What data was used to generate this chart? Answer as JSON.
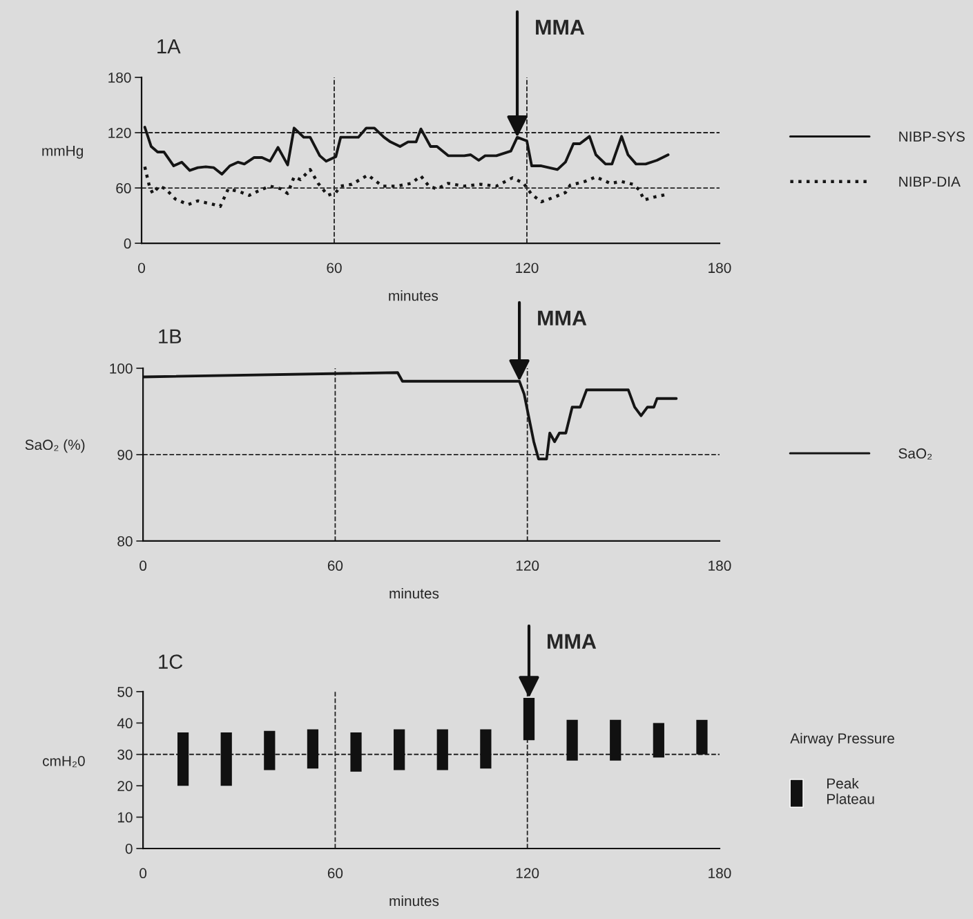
{
  "chart_data": [
    {
      "type": "line",
      "title": "1A",
      "xlabel": "minutes",
      "ylabel": "mmHg",
      "xlim": [
        0,
        180
      ],
      "xticks": [
        0,
        60,
        120,
        180
      ],
      "ylim": [
        0,
        180
      ],
      "yticks": [
        0,
        60,
        120,
        180
      ],
      "legend": "right",
      "series": [
        {
          "name": "NIBP-SYS",
          "color": "#151515",
          "line_style": "solid",
          "x": [
            1,
            3,
            5,
            7,
            10,
            12.5,
            15,
            17.5,
            20,
            22.5,
            25,
            27.5,
            30,
            32,
            35,
            37.5,
            40,
            42.5,
            45.5,
            47.5,
            50.5,
            52.5,
            55.5,
            57.5,
            60.5,
            62,
            67.5,
            70,
            72.5,
            75.5,
            77.5,
            80.5,
            83,
            85.5,
            87,
            90,
            92,
            95.5,
            100.5,
            102.5,
            105,
            107,
            110.5,
            115,
            117,
            120,
            121.5,
            124.5,
            129.5,
            132,
            134.5,
            136.5,
            139.5,
            141.5,
            144.5,
            146.5,
            149.5,
            151.5,
            154,
            157,
            160.5,
            164
          ],
          "values": [
            126,
            105,
            99,
            99,
            84,
            88,
            79,
            82,
            83,
            82,
            75,
            84,
            88,
            86,
            93,
            93,
            89,
            104,
            85,
            125,
            115,
            115,
            95,
            89,
            94,
            115,
            115,
            125,
            125,
            115,
            110,
            105,
            110,
            110,
            124,
            105,
            105,
            95,
            95,
            96,
            90,
            95,
            95,
            100,
            115,
            111,
            84,
            84,
            80,
            88,
            108,
            108,
            116,
            96,
            86,
            86,
            116,
            96,
            86,
            86,
            90,
            96
          ]
        },
        {
          "name": "NIBP-DIA",
          "color": "#151515",
          "line_style": "dotted",
          "x": [
            1,
            2.5,
            3.5,
            5.5,
            7.5,
            10.5,
            14.5,
            17.5,
            20,
            22.5,
            24.5,
            27,
            30.5,
            33.5,
            36.5,
            40,
            43.5,
            45.5,
            47.5,
            49.5,
            52.5,
            55,
            58,
            60.5,
            62,
            65.5,
            70.5,
            75,
            79.5,
            84,
            87,
            89.5,
            92,
            95.5,
            100.5,
            105.5,
            110.5,
            115.5,
            119,
            120,
            121.5,
            124.5,
            128.5,
            132,
            133.5,
            138,
            141.5,
            146,
            149.5,
            153,
            155,
            156.5,
            159.5,
            163.5
          ],
          "values": [
            83,
            61,
            54,
            62,
            59,
            48,
            42,
            46,
            44,
            42,
            40,
            59,
            56,
            52,
            57,
            62,
            59,
            54,
            72,
            69,
            80,
            65,
            52,
            55,
            62,
            64,
            74,
            62,
            62,
            65,
            73,
            62,
            59,
            65,
            62,
            64,
            62,
            71,
            65,
            60,
            53,
            45,
            50,
            55,
            63,
            67,
            72,
            65,
            67,
            64,
            58,
            47,
            50,
            53
          ]
        }
      ],
      "ref_lines": [
        {
          "axis": "y",
          "value": 120,
          "color": "#222222",
          "line_style": "dashed"
        },
        {
          "axis": "y",
          "value": 60,
          "color": "#222222",
          "line_style": "dashed"
        },
        {
          "axis": "x",
          "value": 60,
          "color": "#222222",
          "line_style": "dashed"
        },
        {
          "axis": "x",
          "value": 120,
          "color": "#222222",
          "line_style": "dashed"
        }
      ],
      "annotations": [
        {
          "text": "MMA",
          "x": 117,
          "y": 115
        }
      ]
    },
    {
      "type": "line",
      "title": "1B",
      "xlabel": "minutes",
      "ylabel": "SaO₂ (%)",
      "xlim": [
        0,
        180
      ],
      "xticks": [
        0,
        60,
        120,
        180
      ],
      "ylim": [
        80,
        100
      ],
      "yticks": [
        80,
        90,
        100
      ],
      "legend": "right",
      "series": [
        {
          "name": "SaO₂",
          "color": "#151515",
          "line_style": "solid",
          "x": [
            0,
            79.5,
            81,
            117.5,
            119,
            122,
            123.5,
            126,
            127,
            128.5,
            130,
            132,
            134,
            136.5,
            138.5,
            151.5,
            153.5,
            155.5,
            157.5,
            159.5,
            160.5,
            166.5
          ],
          "values": [
            99,
            99.5,
            98.5,
            98.5,
            97,
            91.5,
            89.5,
            89.5,
            92.5,
            91.5,
            92.5,
            92.5,
            95.5,
            95.5,
            97.5,
            97.5,
            95.5,
            94.5,
            95.5,
            95.5,
            96.5,
            96.5
          ]
        }
      ],
      "ref_lines": [
        {
          "axis": "y",
          "value": 90,
          "color": "#222222",
          "line_style": "dashed"
        },
        {
          "axis": "x",
          "value": 60,
          "color": "#222222",
          "line_style": "dashed"
        },
        {
          "axis": "x",
          "value": 120,
          "color": "#222222",
          "line_style": "dashed"
        }
      ],
      "annotations": [
        {
          "text": "MMA",
          "x": 117.5,
          "y": 98.5
        }
      ]
    },
    {
      "type": "bar",
      "title": "1C",
      "xlabel": "minutes",
      "ylabel": "cmH₂0",
      "xlim": [
        0,
        180
      ],
      "xticks": [
        0,
        60,
        120,
        180
      ],
      "ylim": [
        0,
        50
      ],
      "yticks": [
        0,
        10,
        20,
        30,
        40,
        50
      ],
      "legend": "right",
      "legend_title": "Airway Pressure",
      "series": [
        {
          "name": "Peak\nPlateau",
          "color": "#111111",
          "x": [
            12.5,
            26,
            39.5,
            53,
            66.5,
            80,
            93.5,
            107,
            120.5,
            134,
            147.5,
            161,
            174.5
          ],
          "base": [
            20,
            20,
            25,
            25.5,
            24.5,
            25,
            25,
            25.5,
            34.5,
            28,
            28,
            29,
            30
          ],
          "values": [
            17,
            17,
            12.5,
            12.5,
            12.5,
            13,
            13,
            12.5,
            13.5,
            13,
            13,
            11,
            11
          ]
        }
      ],
      "ref_lines": [
        {
          "axis": "y",
          "value": 30,
          "color": "#222222",
          "line_style": "dashed"
        },
        {
          "axis": "x",
          "value": 60,
          "color": "#222222",
          "line_style": "dashed"
        },
        {
          "axis": "x",
          "value": 120,
          "color": "#222222",
          "line_style": "dashed"
        }
      ],
      "annotations": [
        {
          "text": "MMA",
          "x": 120.5,
          "y": 48
        }
      ]
    }
  ]
}
